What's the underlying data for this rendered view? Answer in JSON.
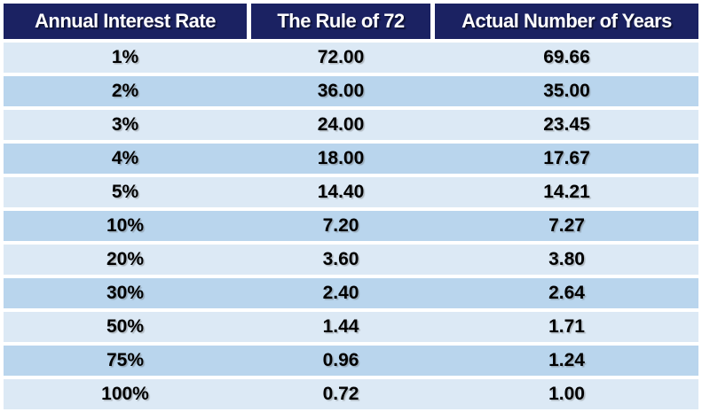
{
  "colors": {
    "header_bg": "#1B2262",
    "header_text": "#FFFFFF",
    "row_light": "#DCE9F5",
    "row_dark": "#B9D5ED",
    "body_text": "#000000",
    "page_bg": "#FFFFFF"
  },
  "chart_data": {
    "type": "table",
    "columns": [
      "Annual Interest Rate",
      "The Rule of 72",
      "Actual Number of Years"
    ],
    "rows": [
      [
        "1%",
        "72.00",
        "69.66"
      ],
      [
        "2%",
        "36.00",
        "35.00"
      ],
      [
        "3%",
        "24.00",
        "23.45"
      ],
      [
        "4%",
        "18.00",
        "17.67"
      ],
      [
        "5%",
        "14.40",
        "14.21"
      ],
      [
        "10%",
        "7.20",
        "7.27"
      ],
      [
        "20%",
        "3.60",
        "3.80"
      ],
      [
        "30%",
        "2.40",
        "2.64"
      ],
      [
        "50%",
        "1.44",
        "1.71"
      ],
      [
        "75%",
        "0.96",
        "1.24"
      ],
      [
        "100%",
        "0.72",
        "1.00"
      ]
    ],
    "layout": {
      "grid": false,
      "row_striping": "alternating light/dark blue",
      "header_position": "top"
    }
  }
}
